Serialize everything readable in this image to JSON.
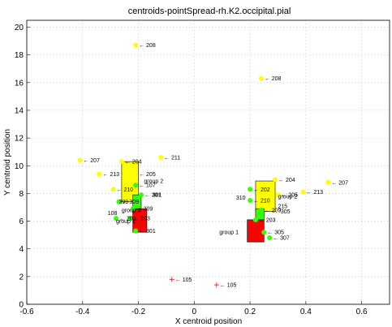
{
  "chart_data": {
    "type": "scatter",
    "title": "centroids-pointSpread-rh.K2.occipital.pial",
    "xlabel": "X centroid position",
    "ylabel": "Y centroid position",
    "xlim": [
      -0.6,
      0.7
    ],
    "ylim": [
      0,
      20.5
    ],
    "xticks": [
      "-0.6",
      "-0.4",
      "-0.2",
      "0",
      "0.2",
      "0.4",
      "0.6"
    ],
    "yticks": [
      "0",
      "2",
      "4",
      "6",
      "8",
      "10",
      "12",
      "14",
      "16",
      "18",
      "20"
    ],
    "grid": true,
    "colors": {
      "yellow": "#ffff00",
      "green": "#33ff00",
      "red": "#ff0000",
      "cross": "#ff0000"
    },
    "points": [
      {
        "label": "208",
        "x": -0.21,
        "y": 18.7,
        "color": "yellow"
      },
      {
        "label": "208",
        "x": 0.24,
        "y": 16.3,
        "color": "yellow"
      },
      {
        "label": "207",
        "x": -0.41,
        "y": 10.4,
        "color": "yellow"
      },
      {
        "label": "211",
        "x": -0.12,
        "y": 10.6,
        "color": "yellow"
      },
      {
        "label": "204",
        "x": -0.26,
        "y": 10.3,
        "color": "yellow"
      },
      {
        "label": "213",
        "x": -0.34,
        "y": 9.4,
        "color": "yellow"
      },
      {
        "label": "205",
        "x": -0.21,
        "y": 9.4,
        "color": "yellow"
      },
      {
        "label": "210",
        "x": -0.29,
        "y": 8.3,
        "color": "yellow"
      },
      {
        "label": "207",
        "x": 0.48,
        "y": 8.8,
        "color": "yellow"
      },
      {
        "label": "204",
        "x": 0.29,
        "y": 9.0,
        "color": "yellow"
      },
      {
        "label": "213",
        "x": 0.39,
        "y": 8.1,
        "color": "yellow"
      },
      {
        "label": "205",
        "x": 0.3,
        "y": 7.9,
        "color": "yellow"
      },
      {
        "label": "309",
        "x": -0.27,
        "y": 7.4,
        "color": "green"
      },
      {
        "label": "301",
        "x": -0.19,
        "y": 7.9,
        "color": "green"
      },
      {
        "label": "107",
        "x": -0.21,
        "y": 8.6,
        "color": "green"
      },
      {
        "label": "203",
        "x": -0.23,
        "y": 6.2,
        "color": "green"
      },
      {
        "label": "209",
        "x": -0.22,
        "y": 6.9,
        "color": "green"
      },
      {
        "label": "301",
        "x": -0.21,
        "y": 5.3,
        "color": "green"
      },
      {
        "label": "202",
        "x": -0.28,
        "y": 6.2,
        "color": "green"
      },
      {
        "label": "210",
        "x": 0.2,
        "y": 7.5,
        "color": "green"
      },
      {
        "label": "202",
        "x": 0.2,
        "y": 8.3,
        "color": "green"
      },
      {
        "label": "209",
        "x": 0.24,
        "y": 6.8,
        "color": "green"
      },
      {
        "label": "203",
        "x": 0.22,
        "y": 6.1,
        "color": "green"
      },
      {
        "label": "305",
        "x": 0.25,
        "y": 5.2,
        "color": "green"
      },
      {
        "label": "307",
        "x": 0.27,
        "y": 4.8,
        "color": "green"
      },
      {
        "label": "105",
        "x": -0.08,
        "y": 1.8,
        "color": "cross"
      },
      {
        "label": "105",
        "x": 0.08,
        "y": 1.4,
        "color": "cross"
      }
    ],
    "extra_labels": [
      {
        "text": "309",
        "x": -0.27,
        "y": 7.4
      },
      {
        "text": "group 3",
        "x": -0.26,
        "y": 6.8
      },
      {
        "text": "group 2",
        "x": -0.18,
        "y": 8.9
      },
      {
        "text": "301",
        "x": -0.15,
        "y": 7.9
      },
      {
        "text": "108",
        "x": -0.31,
        "y": 6.6
      },
      {
        "text": "group 2",
        "x": 0.3,
        "y": 7.8
      },
      {
        "text": "310",
        "x": 0.15,
        "y": 7.7
      },
      {
        "text": "215",
        "x": 0.3,
        "y": 7.1
      },
      {
        "text": "305",
        "x": 0.31,
        "y": 6.7
      },
      {
        "text": "group 1",
        "x": 0.09,
        "y": 5.2
      },
      {
        "text": "group 1",
        "x": -0.28,
        "y": 6.0
      }
    ],
    "boxes": [
      {
        "name": "group 2",
        "color": "yellow",
        "x0": -0.26,
        "x1": -0.2,
        "y0": 7.4,
        "y1": 10.3
      },
      {
        "name": "group 3",
        "color": "green",
        "x0": -0.22,
        "x1": -0.19,
        "y0": 6.7,
        "y1": 7.9
      },
      {
        "name": "group 1",
        "color": "red",
        "x0": -0.22,
        "x1": -0.17,
        "y0": 5.2,
        "y1": 6.9
      },
      {
        "name": "group 2",
        "color": "yellow",
        "x0": 0.22,
        "x1": 0.29,
        "y0": 6.7,
        "y1": 8.9
      },
      {
        "name": "group 3",
        "color": "green",
        "x0": 0.22,
        "x1": 0.25,
        "y0": 5.9,
        "y1": 6.9
      },
      {
        "name": "group 1",
        "color": "red",
        "x0": 0.19,
        "x1": 0.25,
        "y0": 4.5,
        "y1": 6.1
      }
    ]
  }
}
